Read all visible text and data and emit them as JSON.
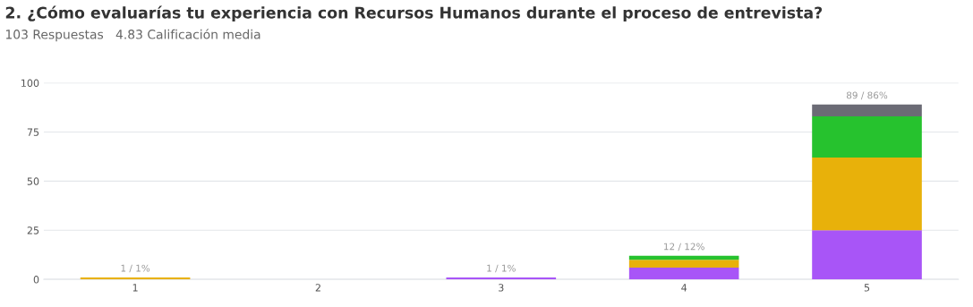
{
  "chart_data": {
    "type": "bar",
    "title": "2. ¿Cómo evaluarías tu experiencia con Recursos Humanos durante el proceso de entrevista?",
    "subtitle": "103 Respuestas   4.83 Calificación media",
    "categories": [
      "1",
      "2",
      "3",
      "4",
      "5"
    ],
    "stacked": true,
    "series": [
      {
        "color": "#a855f7",
        "values": [
          0,
          0,
          1,
          6,
          25
        ]
      },
      {
        "color": "#e8b10a",
        "values": [
          1,
          0,
          0,
          4,
          37
        ]
      },
      {
        "color": "#26c22e",
        "values": [
          0,
          0,
          0,
          2,
          21
        ]
      },
      {
        "color": "#6b6b75",
        "values": [
          0,
          0,
          0,
          0,
          6
        ]
      }
    ],
    "totals": [
      "1 / 1%",
      null,
      "1 / 1%",
      "12 / 12%",
      "89 / 86%"
    ],
    "ylim": [
      0,
      100
    ],
    "yticks": [
      0,
      25,
      50,
      75,
      100
    ],
    "grid": "y"
  }
}
